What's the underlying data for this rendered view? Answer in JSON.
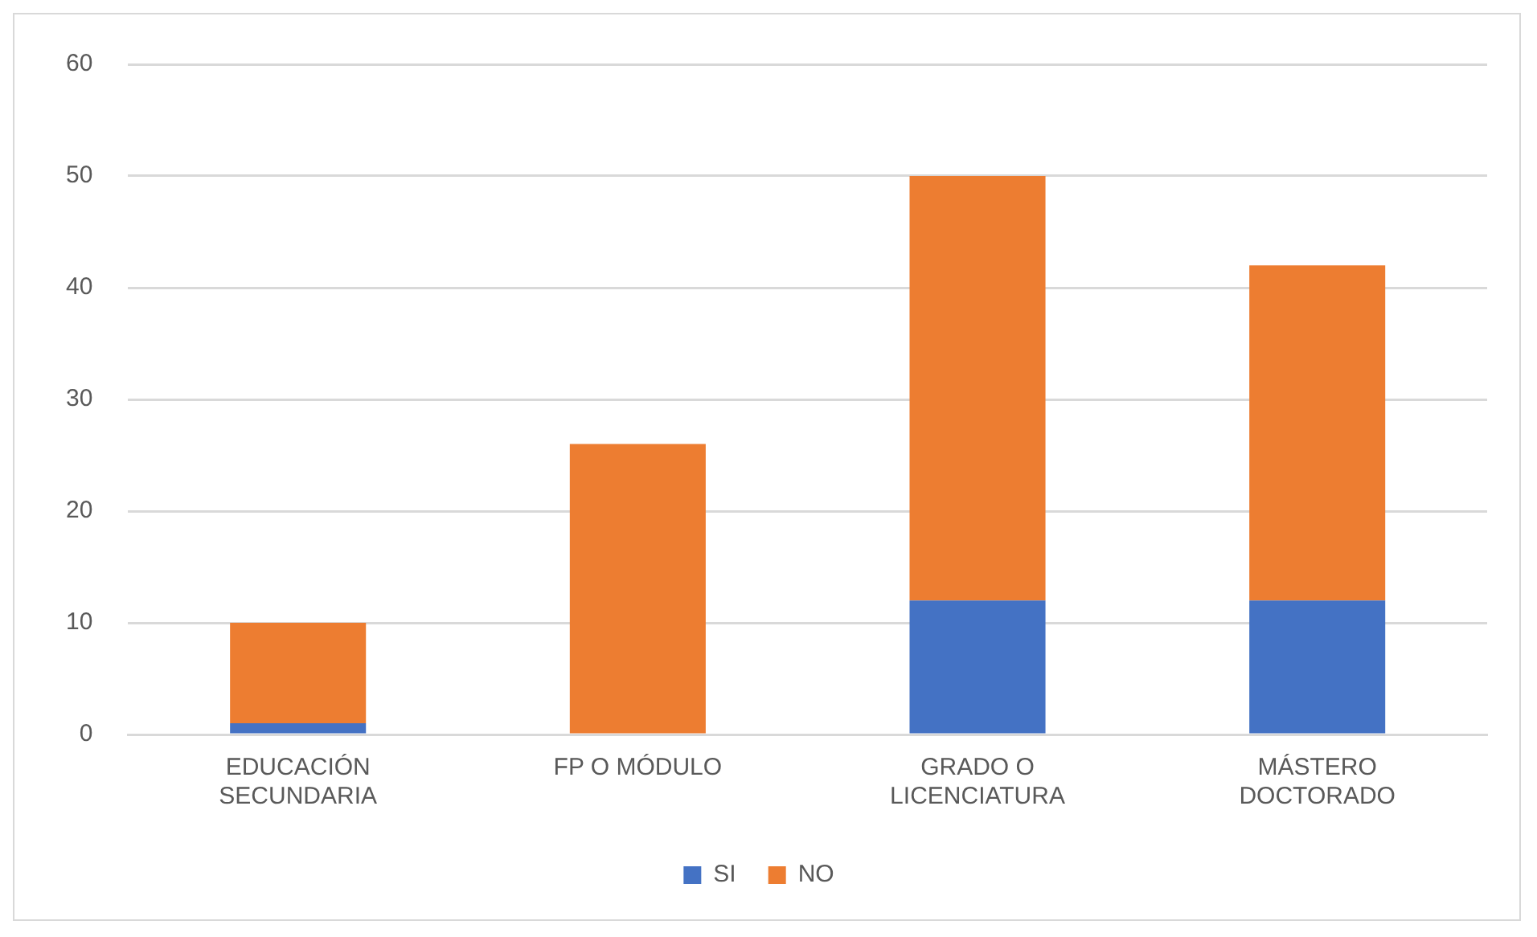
{
  "chart_data": {
    "type": "bar",
    "stacked": true,
    "categories": [
      "EDUCACIÓN SECUNDARIA",
      "FP O MÓDULO",
      "GRADO O LICENCIATURA",
      "MÁSTERO DOCTORADO"
    ],
    "series": [
      {
        "name": "SI",
        "color": "#4472c4",
        "values": [
          1,
          0,
          12,
          12
        ]
      },
      {
        "name": "NO",
        "color": "#ed7d31",
        "values": [
          9,
          26,
          38,
          30
        ]
      }
    ],
    "ylim": [
      0,
      60
    ],
    "yticks": [
      0,
      10,
      20,
      30,
      40,
      50,
      60
    ],
    "grid": "y",
    "legend": "bottom"
  }
}
